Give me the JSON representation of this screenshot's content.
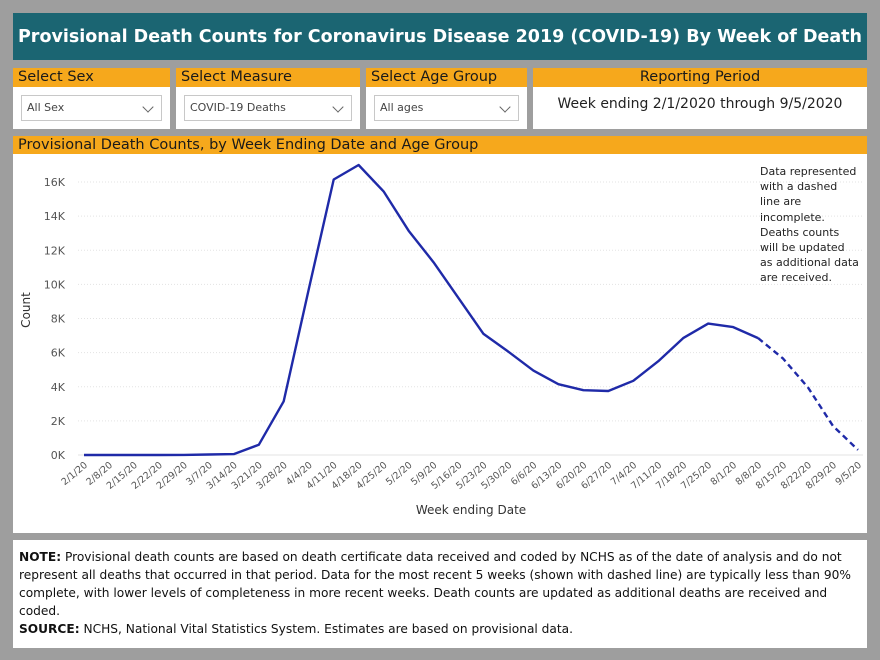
{
  "title": "Provisional Death Counts for Coronavirus Disease 2019 (COVID-19) By Week of Death",
  "filters": {
    "sex": {
      "label": "Select Sex",
      "value": "All Sex"
    },
    "measure": {
      "label": "Select Measure",
      "value": "COVID-19 Deaths"
    },
    "age": {
      "label": "Select Age Group",
      "value": "All ages"
    },
    "period": {
      "label": "Reporting Period",
      "value": "Week ending 2/1/2020 through 9/5/2020"
    }
  },
  "chart": {
    "header": "Provisional Death Counts, by Week Ending Date and Age Group",
    "note": "Data represented with a dashed line are incomplete. Deaths counts will be updated as additional data are received."
  },
  "chart_data": {
    "type": "line",
    "xlabel": "Week ending Date",
    "ylabel": "Count",
    "ylim": [
      0,
      17000
    ],
    "yticks": [
      0,
      2000,
      4000,
      6000,
      8000,
      10000,
      12000,
      14000,
      16000
    ],
    "ytick_labels": [
      "0K",
      "2K",
      "4K",
      "6K",
      "8K",
      "10K",
      "12K",
      "14K",
      "16K"
    ],
    "categories": [
      "2/1/20",
      "2/8/20",
      "2/15/20",
      "2/22/20",
      "2/29/20",
      "3/7/20",
      "3/14/20",
      "3/21/20",
      "3/28/20",
      "4/4/20",
      "4/11/20",
      "4/18/20",
      "4/25/20",
      "5/2/20",
      "5/9/20",
      "5/16/20",
      "5/23/20",
      "5/30/20",
      "6/6/20",
      "6/13/20",
      "6/20/20",
      "6/27/20",
      "7/4/20",
      "7/11/20",
      "7/18/20",
      "7/25/20",
      "8/1/20",
      "8/8/20",
      "8/15/20",
      "8/22/20",
      "8/29/20",
      "9/5/20"
    ],
    "values": [
      0,
      0,
      0,
      0,
      5,
      30,
      50,
      600,
      3150,
      9700,
      16150,
      17000,
      15450,
      13150,
      11300,
      9200,
      7100,
      6050,
      4950,
      4150,
      3800,
      3750,
      4350,
      5500,
      6850,
      7700,
      7500,
      6850,
      5650,
      3950,
      1700,
      300
    ],
    "dashed_from_index": 27,
    "series": [
      {
        "color": "#1f2aa8"
      }
    ],
    "grid": true
  },
  "footer": {
    "note_label": "NOTE:",
    "note_text": " Provisional death counts are based on death certificate data received and coded by NCHS as of the date of analysis and do not represent all deaths that occurred in that period. Data for the most recent 5 weeks (shown with dashed line) are typically less than 90% complete, with lower levels of completeness in more recent weeks.  Death counts are updated as additional deaths are received and coded.",
    "source_label": "SOURCE:",
    "source_text": " NCHS, National Vital Statistics System. Estimates are based on provisional data."
  }
}
